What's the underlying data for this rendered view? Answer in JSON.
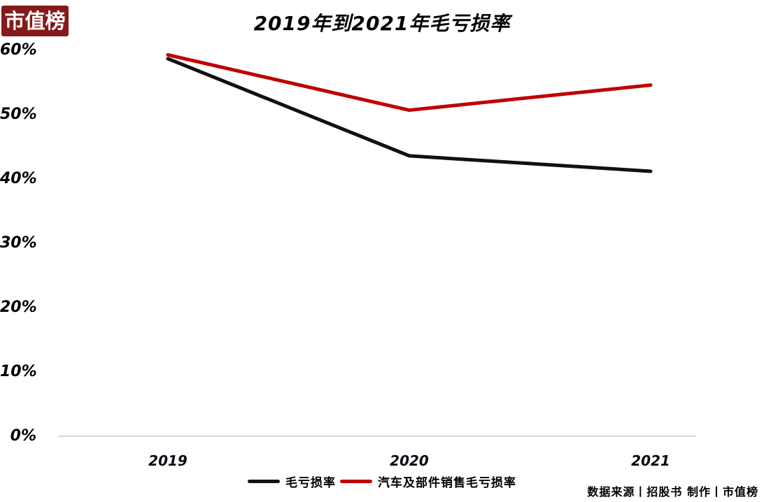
{
  "logo": {
    "text": "市值榜",
    "bg_color": "#851a1a",
    "text_color": "#ffffff"
  },
  "chart_data": {
    "type": "line",
    "title": "2019年到2021年毛亏损率",
    "x": [
      "2019",
      "2020",
      "2021"
    ],
    "series": [
      {
        "name": "毛亏损率",
        "color": "#111111",
        "values": [
          58.7,
          43.6,
          41.2
        ]
      },
      {
        "name": "汽车及部件销售毛亏损率",
        "color": "#c00000",
        "values": [
          59.3,
          50.7,
          54.6
        ]
      }
    ],
    "ylim": [
      0,
      60
    ],
    "yticks": [
      0,
      10,
      20,
      30,
      40,
      50,
      60
    ],
    "ytick_suffix": "%",
    "grid": false,
    "legend_position": "bottom",
    "axis_color": "#d9d9d9"
  },
  "footer": {
    "source": "数据来源丨招股书 制作丨市值榜"
  }
}
